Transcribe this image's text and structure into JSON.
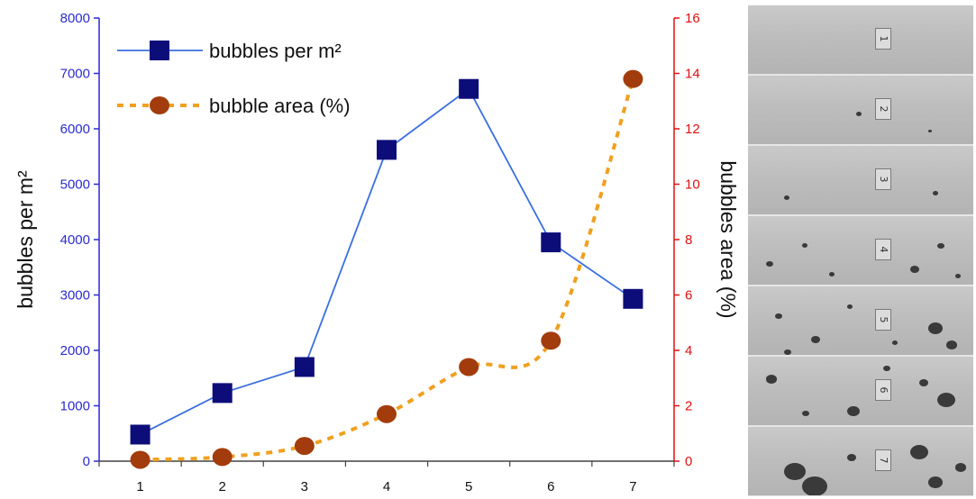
{
  "chart_data": {
    "type": "line",
    "categories": [
      "1",
      "2",
      "3",
      "4",
      "5",
      "6",
      "7"
    ],
    "y_left": {
      "label": "bubbles per m²",
      "ylim": [
        0,
        8000
      ],
      "ticks": [
        "0",
        "1000",
        "2000",
        "3000",
        "4000",
        "5000",
        "6000",
        "7000",
        "8000"
      ],
      "color": "#2b2bd0"
    },
    "y_right": {
      "label": "bubbles area (%)",
      "ylim": [
        0,
        16
      ],
      "ticks": [
        "0",
        "2",
        "4",
        "6",
        "8",
        "10",
        "12",
        "14",
        "16"
      ],
      "color": "#e01010"
    },
    "series": [
      {
        "name": "bubbles per m²",
        "axis": "left",
        "values": [
          480,
          1230,
          1700,
          5620,
          6720,
          3950,
          2930
        ],
        "line_color": "#3b6fe0",
        "marker": "square",
        "marker_color": "#0d0d7a"
      },
      {
        "name": "bubble area (%)",
        "axis": "right",
        "values": [
          0.05,
          0.15,
          0.55,
          1.7,
          3.4,
          4.35,
          13.8
        ],
        "line_color": "#f0a020",
        "marker": "circle",
        "marker_color": "#a23c0c"
      }
    ],
    "legend_position": "top-left",
    "grid": false
  },
  "photo_strip_labels": [
    "1",
    "2",
    "3",
    "4",
    "5",
    "6",
    "7"
  ]
}
